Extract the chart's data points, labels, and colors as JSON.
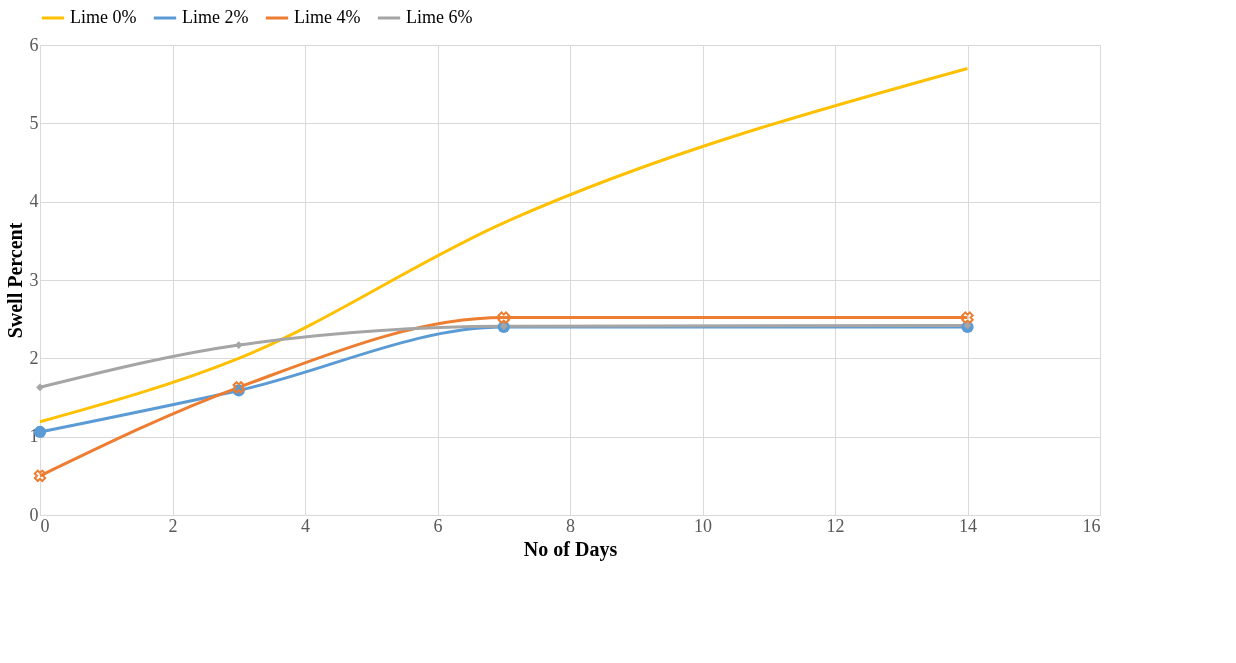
{
  "chart_data": {
    "type": "line",
    "xlabel": "No of Days",
    "ylabel": "Swell Percent",
    "xlim": [
      0,
      16
    ],
    "xticks": [
      0,
      2,
      4,
      6,
      8,
      10,
      12,
      14,
      16
    ],
    "ylim": [
      0,
      6
    ],
    "yticks": [
      0,
      1,
      2,
      3,
      4,
      5,
      6
    ],
    "grid": true,
    "legend": "top",
    "x": [
      0,
      3,
      7,
      14
    ],
    "series": [
      {
        "name": "Lime 0%",
        "color": "#ffc000",
        "marker": "none",
        "values": [
          1.19,
          2.0,
          3.73,
          5.7
        ]
      },
      {
        "name": "Lime 2%",
        "color": "#5b9bd5",
        "marker": "circle",
        "values": [
          1.06,
          1.59,
          2.4,
          2.4
        ]
      },
      {
        "name": "Lime 4%",
        "color": "#ed7d31",
        "marker": "cross",
        "values": [
          0.5,
          1.63,
          2.52,
          2.52
        ]
      },
      {
        "name": "Lime 6%",
        "color": "#a5a5a5",
        "marker": "diamond",
        "values": [
          1.63,
          2.17,
          2.41,
          2.42
        ]
      }
    ]
  }
}
